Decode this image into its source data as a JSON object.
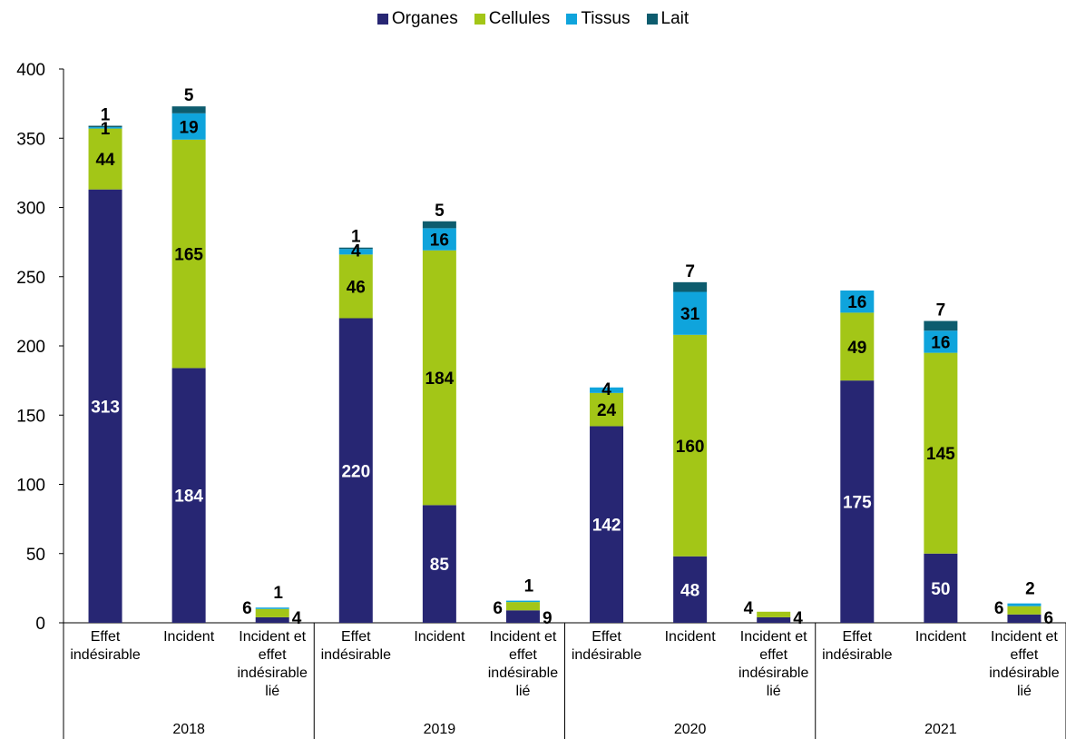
{
  "chart_data": {
    "type": "bar",
    "stacked": true,
    "title": "",
    "xlabel": "",
    "ylabel": "",
    "ylim": [
      0,
      400
    ],
    "yticks": [
      0,
      50,
      100,
      150,
      200,
      250,
      300,
      350,
      400
    ],
    "legend_position": "top-center",
    "groups": [
      {
        "label": "2018",
        "categories": [
          "Effet indésirable",
          "Incident",
          "Incident et effet indésirable lié"
        ]
      },
      {
        "label": "2019",
        "categories": [
          "Effet indésirable",
          "Incident",
          "Incident et effet indésirable lié"
        ]
      },
      {
        "label": "2020",
        "categories": [
          "Effet indésirable",
          "Incident",
          "Incident et effet indésirable lié"
        ]
      },
      {
        "label": "2021",
        "categories": [
          "Effet indésirable",
          "Incident",
          "Incident et effet indésirable lié"
        ]
      }
    ],
    "series": [
      {
        "name": "Organes",
        "color": "#272673",
        "label_color": "#ffffff",
        "values": [
          313,
          184,
          4,
          220,
          85,
          9,
          142,
          48,
          4,
          175,
          50,
          6
        ]
      },
      {
        "name": "Cellules",
        "color": "#a3c617",
        "label_color": "#000000",
        "values": [
          44,
          165,
          6,
          46,
          184,
          6,
          24,
          160,
          4,
          49,
          145,
          6
        ]
      },
      {
        "name": "Tissus",
        "color": "#0fa4dc",
        "label_color": "#000000",
        "values": [
          1,
          19,
          1,
          4,
          16,
          1,
          4,
          31,
          0,
          16,
          16,
          2
        ]
      },
      {
        "name": "Lait",
        "color": "#0d5c6e",
        "label_color": "#000000",
        "values": [
          1,
          5,
          0,
          1,
          5,
          0,
          0,
          7,
          0,
          0,
          7,
          0
        ]
      }
    ]
  }
}
